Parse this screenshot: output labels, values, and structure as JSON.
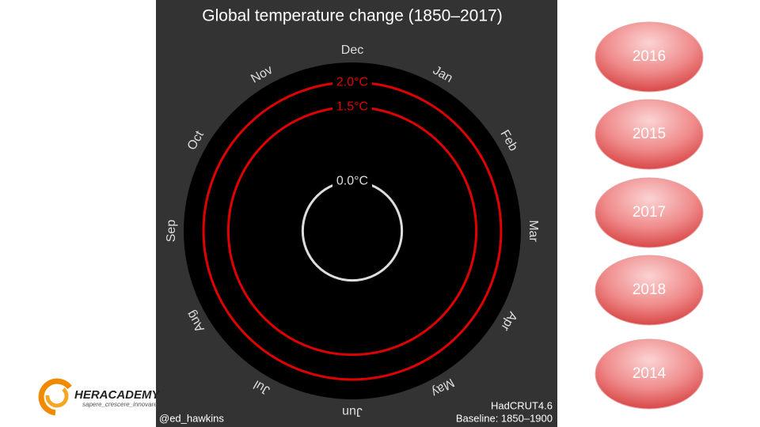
{
  "spiral": {
    "title": "Global temperature change (1850–2017)",
    "months": [
      "Dec",
      "Jan",
      "Feb",
      "Mar",
      "Apr",
      "May",
      "Jun",
      "Jul",
      "Aug",
      "Sep",
      "Oct",
      "Nov"
    ],
    "rlim": [
      -1,
      2.4
    ],
    "rings": [
      {
        "value": 0,
        "label": "0.0°C",
        "color": "#dddddd"
      },
      {
        "value": 1.5,
        "label": "1.5°C",
        "color": "#e00000"
      },
      {
        "value": 2,
        "label": "2.0°C",
        "color": "#e00000"
      }
    ],
    "credit": "@ed_hawkins",
    "source": "HadCRUT4.6",
    "baseline": "Baseline: 1850–1900"
  },
  "buttons": [
    "2016",
    "2015",
    "2017",
    "2018",
    "2014"
  ],
  "logo": {
    "name": "HERACADEMY",
    "tagline": "sapere_crescere_innovare"
  }
}
